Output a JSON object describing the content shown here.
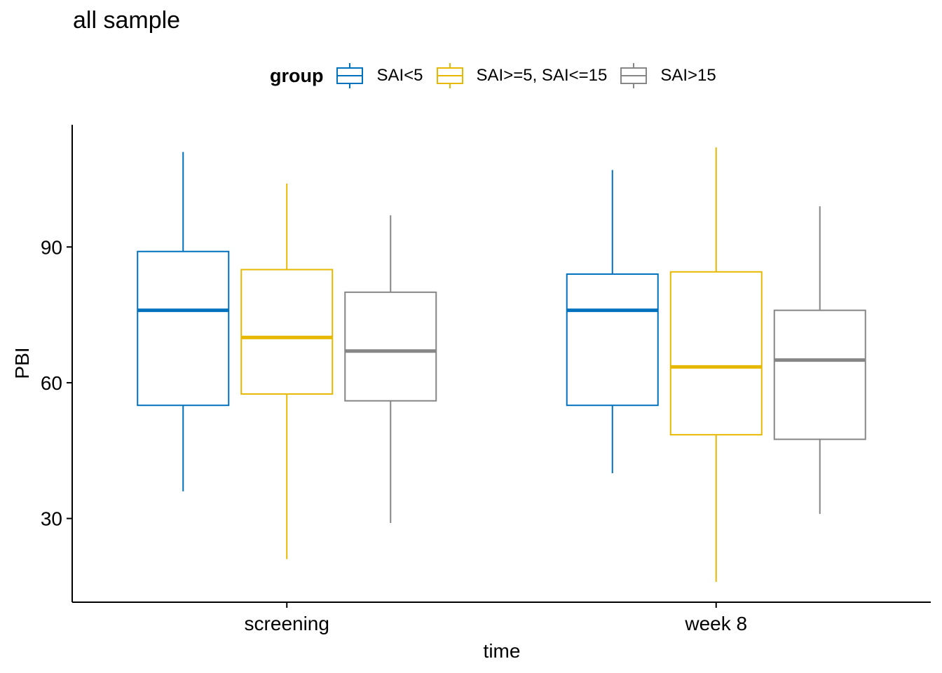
{
  "chart_data": {
    "type": "box",
    "title": "all sample",
    "xlabel": "time",
    "ylabel": "PBI",
    "ylim": [
      11.5,
      117
    ],
    "yticks": [
      30,
      60,
      90
    ],
    "categories": [
      "screening",
      "week 8"
    ],
    "legend": {
      "title": "group",
      "position": "top"
    },
    "series": [
      {
        "name": "SAI<5",
        "color": "#0072BD",
        "boxes": [
          {
            "min": 36,
            "q1": 55,
            "median": 76,
            "q3": 89,
            "max": 111
          },
          {
            "min": 40,
            "q1": 55,
            "median": 76,
            "q3": 84,
            "max": 107
          }
        ]
      },
      {
        "name": "SAI>=5, SAI<=15",
        "color": "#E7B800",
        "boxes": [
          {
            "min": 21,
            "q1": 57.5,
            "median": 70,
            "q3": 85,
            "max": 104
          },
          {
            "min": 16,
            "q1": 48.5,
            "median": 63.5,
            "q3": 84.5,
            "max": 112
          }
        ]
      },
      {
        "name": "SAI>15",
        "color": "#868686",
        "boxes": [
          {
            "min": 29,
            "q1": 56,
            "median": 67,
            "q3": 80,
            "max": 97
          },
          {
            "min": 31,
            "q1": 47.5,
            "median": 65,
            "q3": 76,
            "max": 99
          }
        ]
      }
    ]
  }
}
